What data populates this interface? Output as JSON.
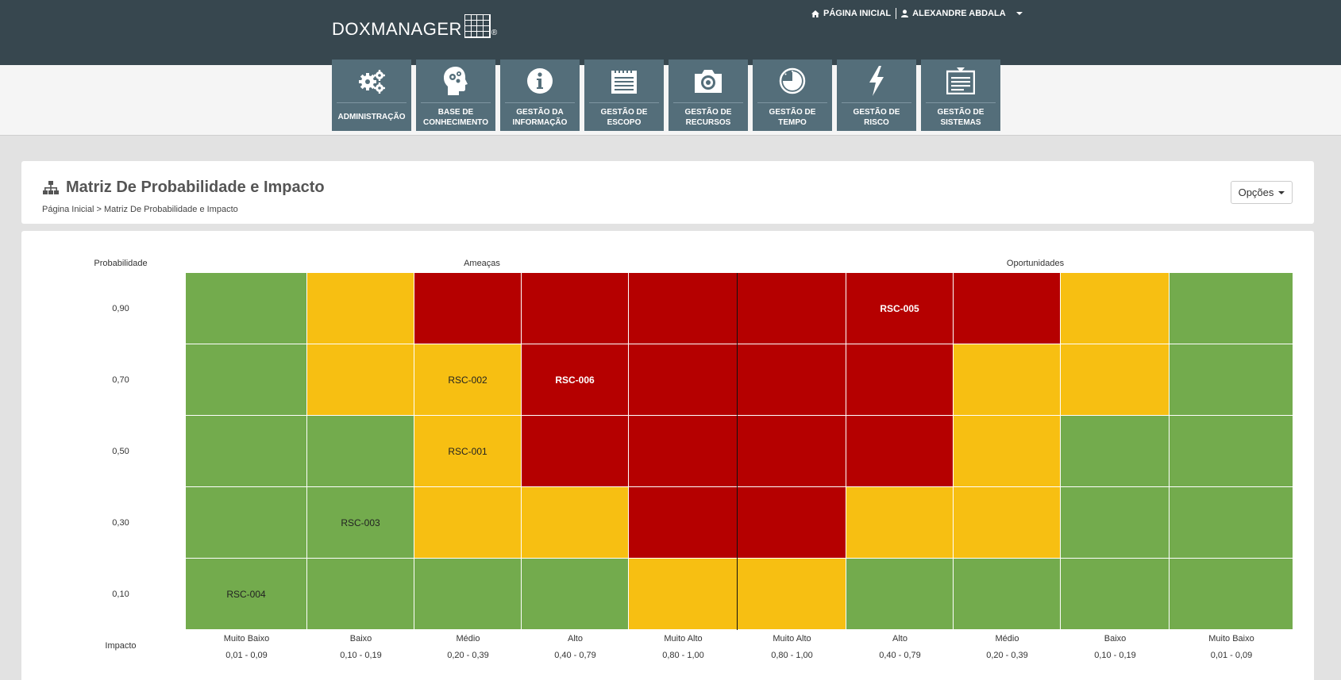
{
  "header": {
    "logo_text": "DOXMANAGER",
    "logo_reg": "®",
    "home_label": "PÁGINA INICIAL",
    "user_label": "ALEXANDRE ABDALA"
  },
  "modules": [
    {
      "label": "ADMINISTRAÇÃO",
      "icon": "gears-icon"
    },
    {
      "label": "BASE DE CONHECIMENTO",
      "icon": "head-gears-icon"
    },
    {
      "label": "GESTÃO DA INFORMAÇÃO",
      "icon": "info-icon"
    },
    {
      "label": "GESTÃO DE ESCOPO",
      "icon": "notepad-icon"
    },
    {
      "label": "GESTÃO DE RECURSOS",
      "icon": "camera-icon"
    },
    {
      "label": "GESTÃO DE TEMPO",
      "icon": "clock-icon"
    },
    {
      "label": "GESTÃO DE RISCO",
      "icon": "lightning-icon"
    },
    {
      "label": "GESTÃO DE SISTEMAS",
      "icon": "document-icon"
    }
  ],
  "page": {
    "title": "Matriz De Probabilidade e Impacto",
    "breadcrumb_home": "Página Inicial",
    "breadcrumb_sep": ">",
    "breadcrumb_current": "Matriz De Probabilidade e Impacto",
    "options_label": "Opções"
  },
  "matrix": {
    "probability_label": "Probabilidade",
    "impact_label": "Impacto",
    "threats_label": "Ameaças",
    "opportunities_label": "Oportunidades",
    "rows": [
      {
        "probability": "0,90",
        "cells": [
          "g",
          "y",
          "r",
          "r",
          "r",
          "r",
          "r",
          "r",
          "y",
          "g"
        ],
        "risks": [
          "",
          "",
          "",
          "",
          "",
          "",
          "RSC-005",
          "",
          "",
          ""
        ]
      },
      {
        "probability": "0,70",
        "cells": [
          "g",
          "y",
          "y",
          "r",
          "r",
          "r",
          "r",
          "y",
          "y",
          "g"
        ],
        "risks": [
          "",
          "",
          "RSC-002",
          "RSC-006",
          "",
          "",
          "",
          "",
          "",
          ""
        ]
      },
      {
        "probability": "0,50",
        "cells": [
          "g",
          "g",
          "y",
          "r",
          "r",
          "r",
          "r",
          "y",
          "g",
          "g"
        ],
        "risks": [
          "",
          "",
          "RSC-001",
          "",
          "",
          "",
          "",
          "",
          "",
          ""
        ]
      },
      {
        "probability": "0,30",
        "cells": [
          "g",
          "g",
          "y",
          "y",
          "r",
          "r",
          "y",
          "y",
          "g",
          "g"
        ],
        "risks": [
          "",
          "RSC-003",
          "",
          "",
          "",
          "",
          "",
          "",
          "",
          ""
        ]
      },
      {
        "probability": "0,10",
        "cells": [
          "g",
          "g",
          "g",
          "g",
          "y",
          "y",
          "g",
          "g",
          "g",
          "g"
        ],
        "risks": [
          "RSC-004",
          "",
          "",
          "",
          "",
          "",
          "",
          "",
          "",
          ""
        ]
      }
    ],
    "impact_columns": [
      {
        "label": "Muito Baixo",
        "range": "0,01 - 0,09"
      },
      {
        "label": "Baixo",
        "range": "0,10 - 0,19"
      },
      {
        "label": "Médio",
        "range": "0,20 - 0,39"
      },
      {
        "label": "Alto",
        "range": "0,40 - 0,79"
      },
      {
        "label": "Muito Alto",
        "range": "0,80 - 1,00"
      },
      {
        "label": "Muito Alto",
        "range": "0,80 - 1,00"
      },
      {
        "label": "Alto",
        "range": "0,40 - 0,79"
      },
      {
        "label": "Médio",
        "range": "0,20 - 0,39"
      },
      {
        "label": "Baixo",
        "range": "0,10 - 0,19"
      },
      {
        "label": "Muito Baixo",
        "range": "0,01 - 0,09"
      }
    ],
    "colors": {
      "g": "#73ab4d",
      "y": "#f7bf12",
      "r": "#b50000"
    }
  }
}
